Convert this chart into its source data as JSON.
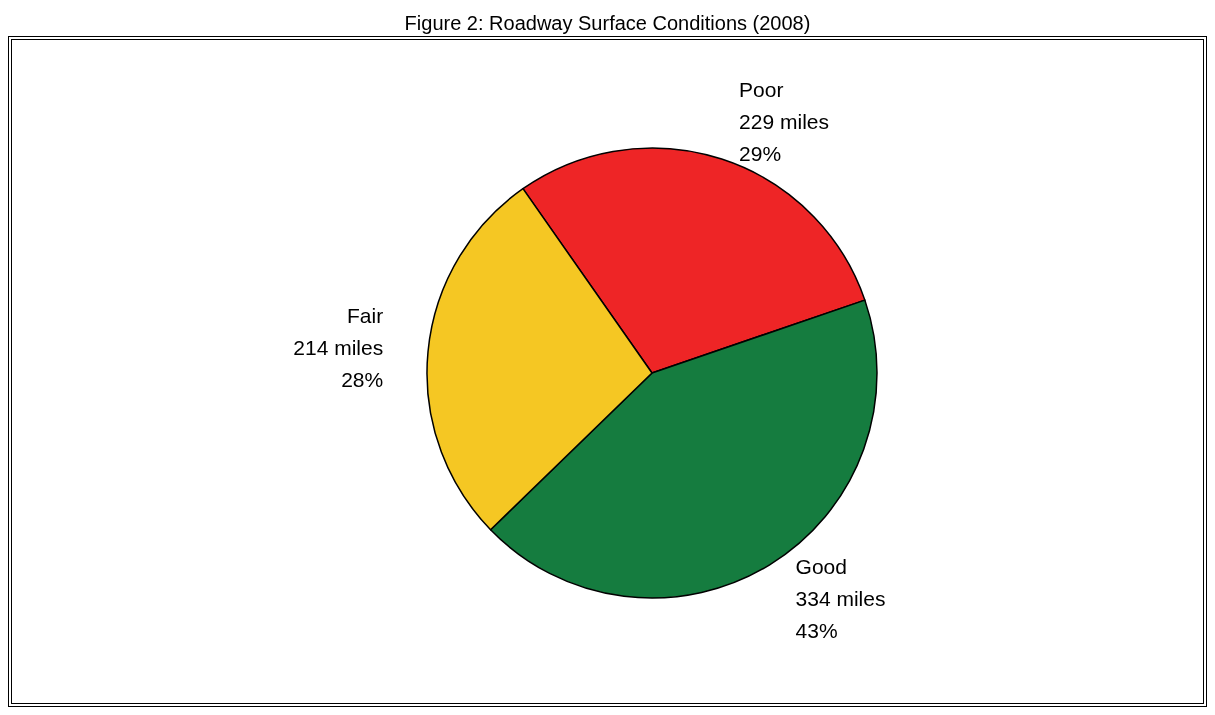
{
  "chart_data": {
    "type": "pie",
    "title": "Figure 2: Roadway Surface Conditions (2008)",
    "categories": [
      "Poor",
      "Good",
      "Fair"
    ],
    "values": [
      229,
      334,
      214
    ],
    "colors": [
      "#ee2526",
      "#157c3f",
      "#f5c723"
    ],
    "value_labels": [
      "229 miles\n29%",
      "334 miles\n43%",
      "214 miles\n28%"
    ],
    "legend": false
  }
}
